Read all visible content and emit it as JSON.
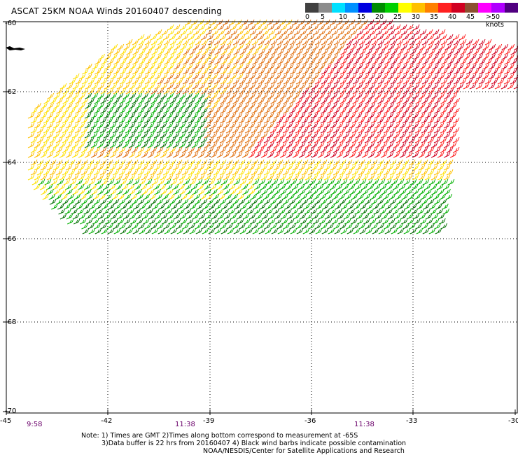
{
  "title": "ASCAT 25KM NOAA Winds 20160407 descending",
  "colorbar": {
    "colors": [
      "#404040",
      "#8c8c8c",
      "#00e0ff",
      "#0090ff",
      "#0000e0",
      "#008c00",
      "#00d000",
      "#ffff00",
      "#ffc000",
      "#ff8000",
      "#ff2020",
      "#d00020",
      "#8c5030",
      "#ff00ff",
      "#b000ff",
      "#500080"
    ],
    "labels": [
      "0",
      "5",
      "10",
      "15",
      "20",
      "25",
      "30",
      "35",
      "40",
      "45",
      ">50 knots"
    ]
  },
  "axes": {
    "lon_ticks": [
      "-45",
      "-42",
      "-39",
      "-36",
      "-33",
      "-30"
    ],
    "lat_ticks": [
      "-60",
      "-62",
      "-64",
      "-66",
      "-68",
      "-70"
    ],
    "time_labels": [
      "9:58",
      "11:38",
      "11:38"
    ]
  },
  "wind_colors": {
    "dark_red": "#d00020",
    "red": "#ff2020",
    "orange": "#e07010",
    "gold": "#ffc000",
    "yellow": "#ffe000",
    "green": "#00b000",
    "dark_green": "#007000",
    "blue": "#2020c0"
  },
  "notes": [
    "Note: 1) Times are GMT 2)Times along bottom correspond to measurement at -65S",
    "3)Data buffer is 22 hrs from 20160407 4) Black wind barbs indicate possible contamination",
    "NOAA/NESDIS/Center for Satellite Applications and Research"
  ]
}
